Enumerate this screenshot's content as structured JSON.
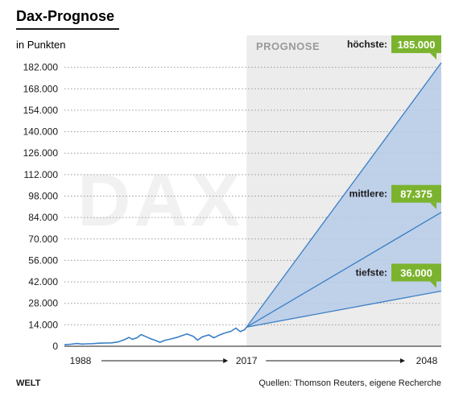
{
  "chart_data": {
    "type": "line",
    "title": "Dax-Prognose",
    "subtitle": "in Punkten",
    "forecast_label": "PROGNOSE",
    "watermark": "DAX",
    "x_ticks": [
      "1988",
      "2017",
      "2048"
    ],
    "x_range": [
      1988,
      2048
    ],
    "forecast_start": 2017,
    "ylim": [
      0,
      186000
    ],
    "y_ticks": [
      0,
      14000,
      28000,
      42000,
      56000,
      70000,
      84000,
      98000,
      112000,
      126000,
      140000,
      154000,
      168000,
      182000
    ],
    "y_tick_labels": [
      "0",
      "14.000",
      "28.000",
      "42.000",
      "56.000",
      "70.000",
      "84.000",
      "98.000",
      "112.000",
      "126.000",
      "140.000",
      "154.000",
      "168.000",
      "182.000"
    ],
    "grid": true,
    "historical": {
      "x": [
        1988.0,
        1989.0,
        1990.0,
        1990.8,
        1991.5,
        1992.5,
        1993.5,
        1994.5,
        1995.5,
        1996.5,
        1997.5,
        1998.3,
        1998.8,
        1999.5,
        2000.2,
        2001.0,
        2001.8,
        2002.5,
        2003.2,
        2004.0,
        2005.0,
        2006.0,
        2007.5,
        2008.5,
        2009.2,
        2010.0,
        2011.0,
        2011.8,
        2012.5,
        2013.5,
        2014.5,
        2015.3,
        2016.0,
        2016.7,
        2017.0
      ],
      "y": [
        1000,
        1300,
        1800,
        1400,
        1600,
        1700,
        2000,
        2100,
        2200,
        2800,
        4200,
        5800,
        4500,
        5400,
        7600,
        6200,
        4800,
        3800,
        2600,
        3900,
        4800,
        5900,
        8000,
        6500,
        4000,
        6200,
        7400,
        5500,
        7000,
        8600,
        9700,
        11800,
        9500,
        10800,
        12500
      ]
    },
    "forecasts": [
      {
        "label": "höchste:",
        "value_label": "185.000",
        "value": 185000,
        "x": 2048
      },
      {
        "label": "mittlere:",
        "value_label": "87.375",
        "value": 87375,
        "x": 2048
      },
      {
        "label": "tiefste:",
        "value_label": "36.000",
        "value": 36000,
        "x": 2048
      }
    ],
    "colors": {
      "line": "#3a7fc4",
      "fan_fill": "#b7cbe9",
      "forecast_bg": "#ececec",
      "badge": "#7bb32e",
      "grid": "#9a9a9a"
    }
  },
  "footer": {
    "brand": "WELT",
    "source": "Quellen: Thomson Reuters, eigene Recherche"
  }
}
